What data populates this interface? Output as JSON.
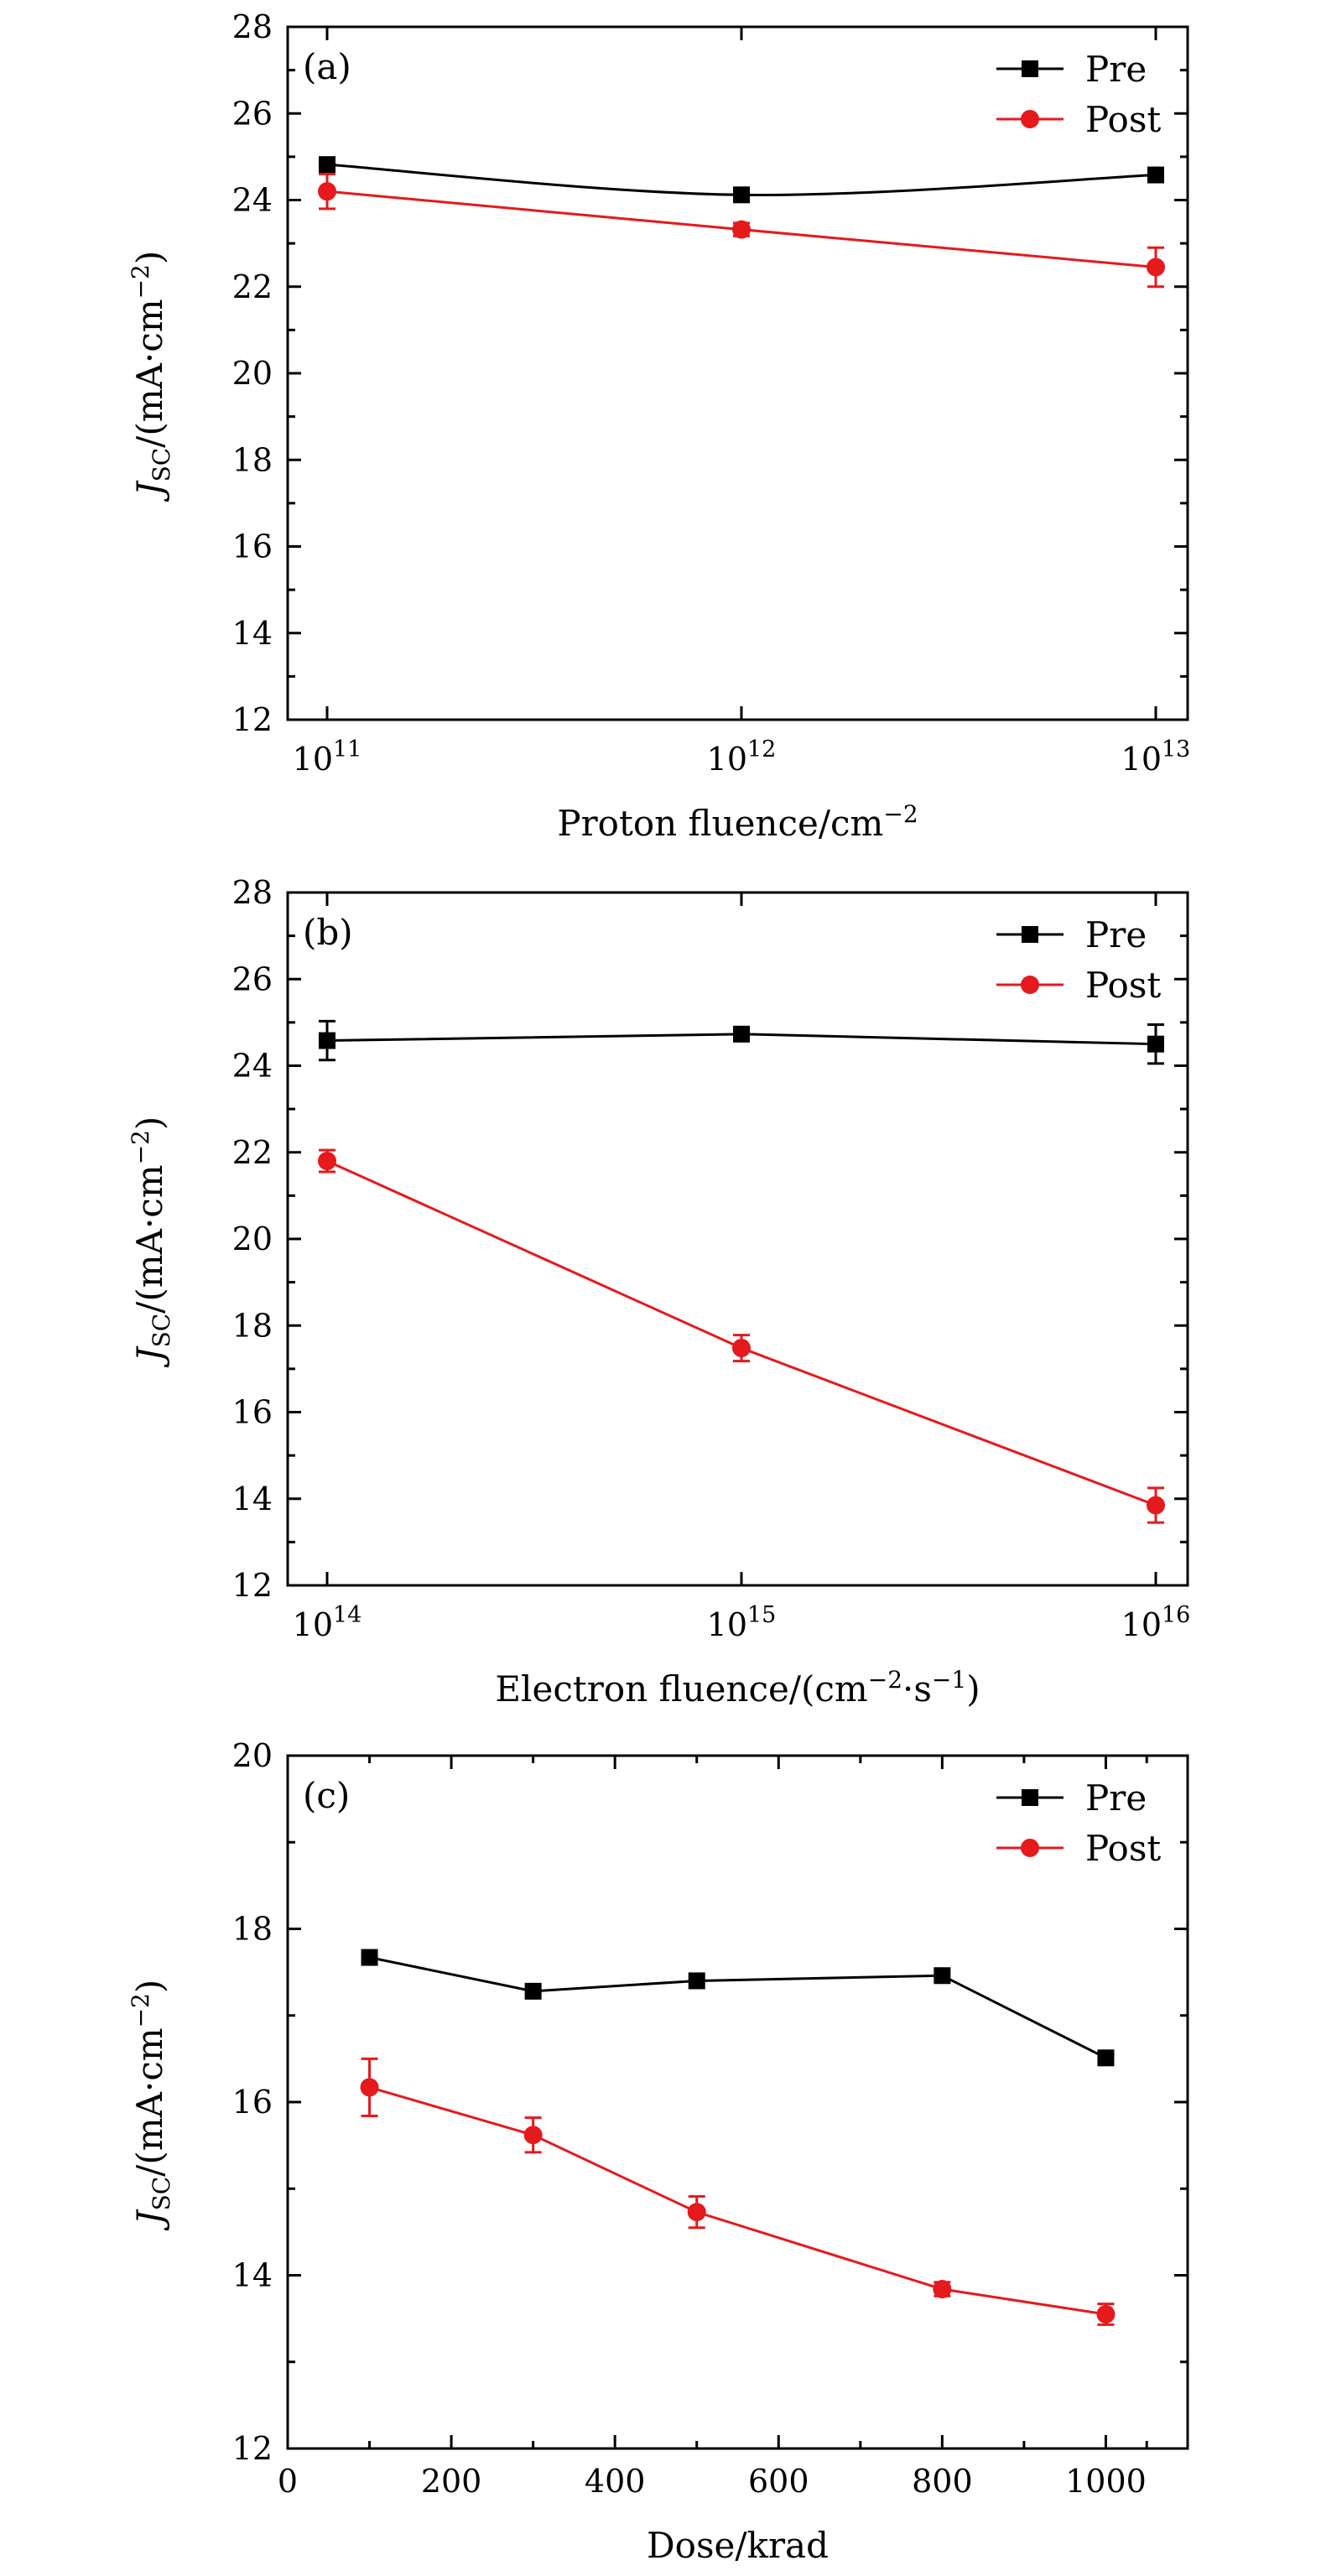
{
  "chart_data": [
    {
      "type": "line",
      "panel_label": "(a)",
      "x_scale": "log",
      "x": [
        100000000000,
        1000000000000,
        10000000000000
      ],
      "xticks": [
        {
          "base": "10",
          "exp": "11"
        },
        {
          "base": "10",
          "exp": "12"
        },
        {
          "base": "10",
          "exp": "13"
        }
      ],
      "xlabel": {
        "text": "Proton fluence/cm",
        "sup": "−2",
        "tail": ""
      },
      "ylabel": {
        "J": "J",
        "sub": "SC",
        "unit": "/(mA·cm",
        "sup": "−2",
        "close": ")"
      },
      "ylim": [
        12,
        28
      ],
      "yticks": [
        12,
        14,
        16,
        18,
        20,
        22,
        24,
        26,
        28
      ],
      "yticks_text": [
        "12",
        "14",
        "16",
        "18",
        "20",
        "22",
        "24",
        "26",
        "28"
      ],
      "grid": false,
      "legend": "top-right",
      "series": [
        {
          "name": "Pre",
          "marker": "square",
          "color": "#000000",
          "smooth": true,
          "values": [
            24.82,
            24.12,
            24.58
          ],
          "errors": [
            0.15,
            0.15,
            0.15
          ]
        },
        {
          "name": "Post",
          "marker": "circle",
          "color": "#e41a1c",
          "smooth": false,
          "values": [
            24.2,
            23.32,
            22.45
          ],
          "errors": [
            0.4,
            0.15,
            0.45
          ]
        }
      ]
    },
    {
      "type": "line",
      "panel_label": "(b)",
      "x_scale": "log",
      "x": [
        100000000000000,
        1000000000000000,
        10000000000000000
      ],
      "xticks": [
        {
          "base": "10",
          "exp": "14"
        },
        {
          "base": "10",
          "exp": "15"
        },
        {
          "base": "10",
          "exp": "16"
        }
      ],
      "xlabel": {
        "text": "Electron fluence/(cm",
        "sup": "−2",
        "mid": "·s",
        "sup2": "−1",
        "tail": ")"
      },
      "ylabel": {
        "J": "J",
        "sub": "SC",
        "unit": "/(mA·cm",
        "sup": "−2",
        "close": ")"
      },
      "ylim": [
        12,
        28
      ],
      "yticks": [
        12,
        14,
        16,
        18,
        20,
        22,
        24,
        26,
        28
      ],
      "yticks_text": [
        "12",
        "14",
        "16",
        "18",
        "20",
        "22",
        "24",
        "26",
        "28"
      ],
      "grid": false,
      "legend": "top-right",
      "series": [
        {
          "name": "Pre",
          "marker": "square",
          "color": "#000000",
          "smooth": false,
          "values": [
            24.58,
            24.73,
            24.5
          ],
          "errors": [
            0.45,
            0.15,
            0.45
          ]
        },
        {
          "name": "Post",
          "marker": "circle",
          "color": "#e41a1c",
          "smooth": false,
          "values": [
            21.8,
            17.48,
            13.85
          ],
          "errors": [
            0.25,
            0.3,
            0.4
          ]
        }
      ]
    },
    {
      "type": "line",
      "panel_label": "(c)",
      "x_scale": "linear",
      "x": [
        100,
        300,
        500,
        800,
        1000
      ],
      "xlim": [
        0,
        1100
      ],
      "xticks_values": [
        0,
        200,
        400,
        600,
        800,
        1000
      ],
      "xticks_text": [
        "0",
        "200",
        "400",
        "600",
        "800",
        "1000"
      ],
      "xlabel": {
        "text": "Dose/krad",
        "sup": "",
        "tail": ""
      },
      "ylabel": {
        "J": "J",
        "sub": "SC",
        "unit": "/(mA·cm",
        "sup": "−2",
        "close": ")"
      },
      "ylim": [
        12,
        20
      ],
      "yticks": [
        12,
        14,
        16,
        18,
        20
      ],
      "yticks_text": [
        "12",
        "14",
        "16",
        "18",
        "20"
      ],
      "grid": false,
      "legend": "top-right",
      "series": [
        {
          "name": "Pre",
          "marker": "square",
          "color": "#000000",
          "smooth": false,
          "values": [
            17.67,
            17.28,
            17.4,
            17.46,
            16.51
          ],
          "errors": [
            0,
            0,
            0,
            0,
            0
          ]
        },
        {
          "name": "Post",
          "marker": "circle",
          "color": "#e41a1c",
          "smooth": false,
          "values": [
            16.17,
            15.62,
            14.73,
            13.84,
            13.55
          ],
          "errors": [
            0.33,
            0.2,
            0.18,
            0.08,
            0.12
          ]
        }
      ]
    }
  ]
}
